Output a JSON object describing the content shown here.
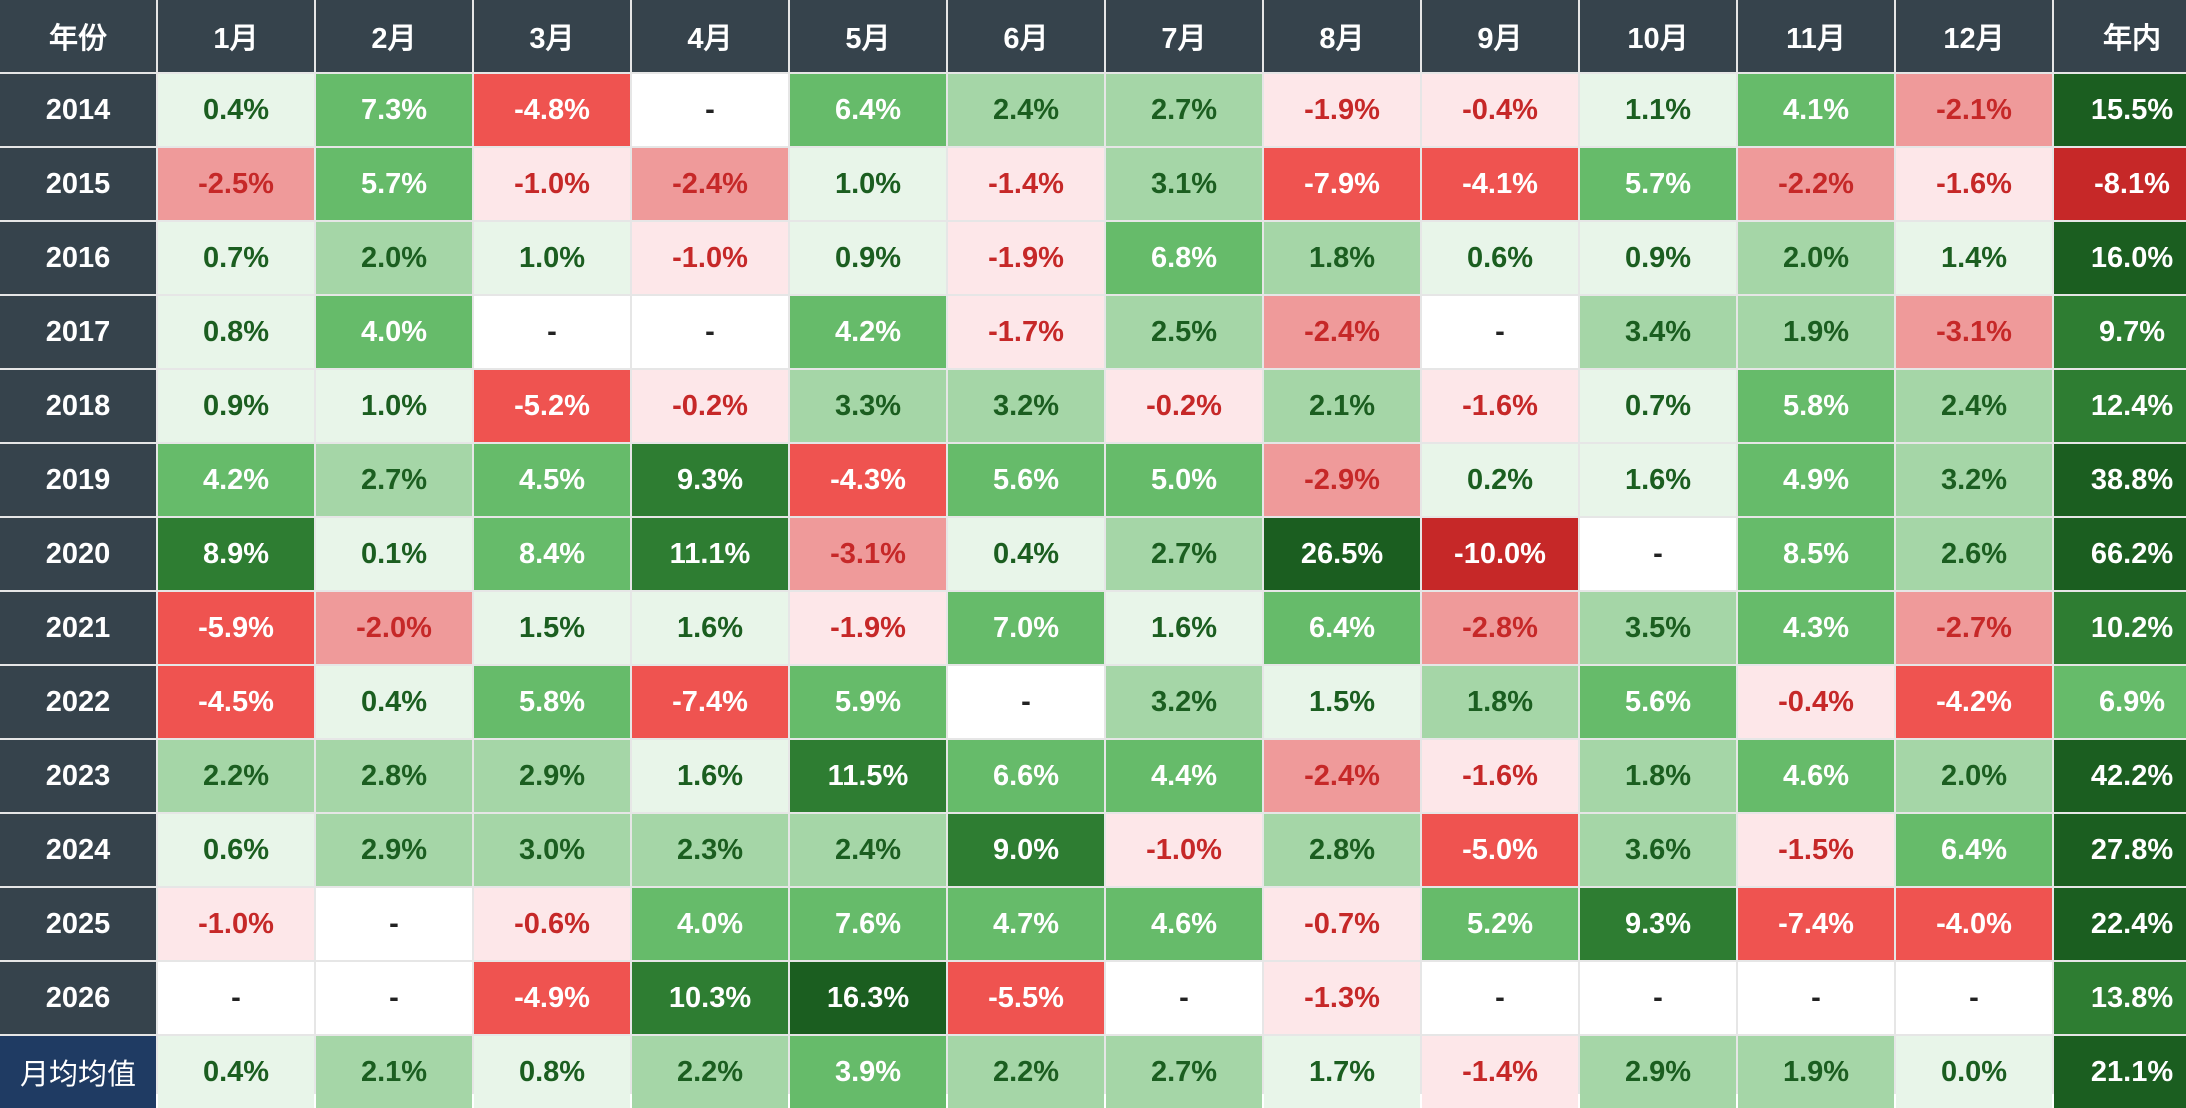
{
  "chart_data": {
    "type": "heatmap",
    "columns": [
      "年份",
      "1月",
      "2月",
      "3月",
      "4月",
      "5月",
      "6月",
      "7月",
      "8月",
      "9月",
      "10月",
      "11月",
      "12月",
      "年内"
    ],
    "rows": [
      {
        "label": "2014",
        "values": [
          "0.4%",
          "7.3%",
          "-4.8%",
          "-",
          "6.4%",
          "2.4%",
          "2.7%",
          "-1.9%",
          "-0.4%",
          "1.1%",
          "4.1%",
          "-2.1%",
          "15.5%"
        ]
      },
      {
        "label": "2015",
        "values": [
          "-2.5%",
          "5.7%",
          "-1.0%",
          "-2.4%",
          "1.0%",
          "-1.4%",
          "3.1%",
          "-7.9%",
          "-4.1%",
          "5.7%",
          "-2.2%",
          "-1.6%",
          "-8.1%"
        ]
      },
      {
        "label": "2016",
        "values": [
          "0.7%",
          "2.0%",
          "1.0%",
          "-1.0%",
          "0.9%",
          "-1.9%",
          "6.8%",
          "1.8%",
          "0.6%",
          "0.9%",
          "2.0%",
          "1.4%",
          "16.0%"
        ]
      },
      {
        "label": "2017",
        "values": [
          "0.8%",
          "4.0%",
          "-",
          "-",
          "4.2%",
          "-1.7%",
          "2.5%",
          "-2.4%",
          "-",
          "3.4%",
          "1.9%",
          "-3.1%",
          "9.7%"
        ]
      },
      {
        "label": "2018",
        "values": [
          "0.9%",
          "1.0%",
          "-5.2%",
          "-0.2%",
          "3.3%",
          "3.2%",
          "-0.2%",
          "2.1%",
          "-1.6%",
          "0.7%",
          "5.8%",
          "2.4%",
          "12.4%"
        ]
      },
      {
        "label": "2019",
        "values": [
          "4.2%",
          "2.7%",
          "4.5%",
          "9.3%",
          "-4.3%",
          "5.6%",
          "5.0%",
          "-2.9%",
          "0.2%",
          "1.6%",
          "4.9%",
          "3.2%",
          "38.8%"
        ]
      },
      {
        "label": "2020",
        "values": [
          "8.9%",
          "0.1%",
          "8.4%",
          "11.1%",
          "-3.1%",
          "0.4%",
          "2.7%",
          "26.5%",
          "-10.0%",
          "-",
          "8.5%",
          "2.6%",
          "66.2%"
        ]
      },
      {
        "label": "2021",
        "values": [
          "-5.9%",
          "-2.0%",
          "1.5%",
          "1.6%",
          "-1.9%",
          "7.0%",
          "1.6%",
          "6.4%",
          "-2.8%",
          "3.5%",
          "4.3%",
          "-2.7%",
          "10.2%"
        ]
      },
      {
        "label": "2022",
        "values": [
          "-4.5%",
          "0.4%",
          "5.8%",
          "-7.4%",
          "5.9%",
          "-",
          "3.2%",
          "1.5%",
          "1.8%",
          "5.6%",
          "-0.4%",
          "-4.2%",
          "6.9%"
        ]
      },
      {
        "label": "2023",
        "values": [
          "2.2%",
          "2.8%",
          "2.9%",
          "1.6%",
          "11.5%",
          "6.6%",
          "4.4%",
          "-2.4%",
          "-1.6%",
          "1.8%",
          "4.6%",
          "2.0%",
          "42.2%"
        ]
      },
      {
        "label": "2024",
        "values": [
          "0.6%",
          "2.9%",
          "3.0%",
          "2.3%",
          "2.4%",
          "9.0%",
          "-1.0%",
          "2.8%",
          "-5.0%",
          "3.6%",
          "-1.5%",
          "6.4%",
          "27.8%"
        ]
      },
      {
        "label": "2025",
        "values": [
          "-1.0%",
          "-",
          "-0.6%",
          "4.0%",
          "7.6%",
          "4.7%",
          "4.6%",
          "-0.7%",
          "5.2%",
          "9.3%",
          "-7.4%",
          "-4.0%",
          "22.4%"
        ]
      },
      {
        "label": "2026",
        "values": [
          "-",
          "-",
          "-4.9%",
          "10.3%",
          "16.3%",
          "-5.5%",
          "-",
          "-1.3%",
          "-",
          "-",
          "-",
          "-",
          "13.8%"
        ]
      },
      {
        "label": "月均均值",
        "values": [
          "0.4%",
          "2.1%",
          "0.8%",
          "2.2%",
          "3.9%",
          "2.2%",
          "2.7%",
          "1.7%",
          "-1.4%",
          "2.9%",
          "1.9%",
          "0.0%",
          "21.1%"
        ]
      }
    ],
    "colors": {
      "header_bg": "#36434c",
      "avg_label_bg": "#1f3b63",
      "empty": "#ffffff",
      "pos": [
        "#e8f5e9",
        "#a5d6a7",
        "#66bb6a",
        "#2e7d32",
        "#1b5e20"
      ],
      "neg": [
        "#fde7e9",
        "#ef9a9a",
        "#ef5350",
        "#c62828"
      ],
      "pos_text_light": "#1b5e20",
      "neg_text_light": "#c62828"
    }
  }
}
